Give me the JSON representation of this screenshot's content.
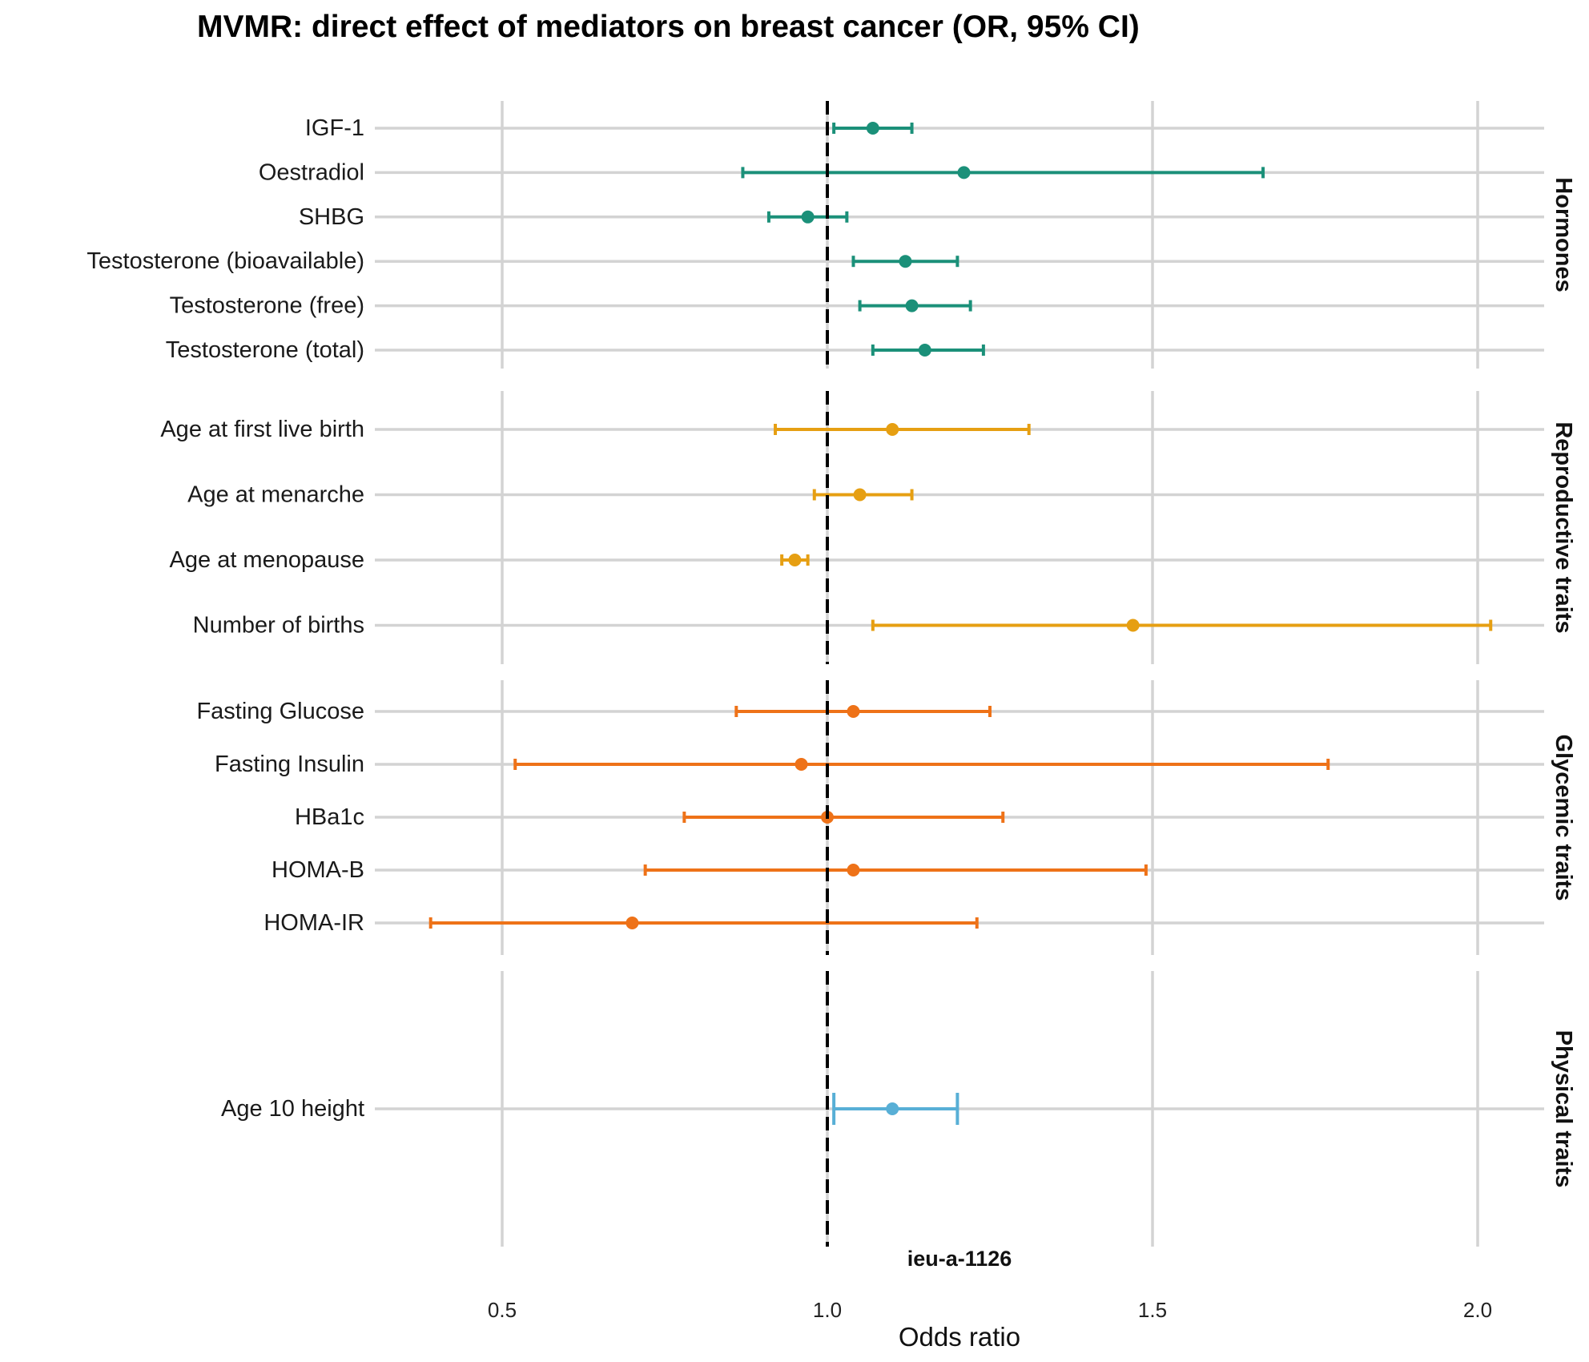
{
  "chart_data": {
    "type": "forest",
    "title": "MVMR: direct effect of mediators on breast cancer (OR, 95% CI)",
    "xlabel": "Odds ratio",
    "caption": "ieu-a-1126",
    "xlim": [
      0.3,
      2.1
    ],
    "xticks": [
      0.5,
      1.0,
      1.5,
      2.0
    ],
    "xtick_labels": [
      "0.5",
      "1.0",
      "1.5",
      "2.0"
    ],
    "reference_line": 1.0,
    "grid": true,
    "panels": [
      {
        "name": "Hormones",
        "color": "#1b9079",
        "rows": [
          {
            "label": "IGF-1",
            "or": 1.07,
            "lo": 1.01,
            "hi": 1.13
          },
          {
            "label": "Oestradiol",
            "or": 1.21,
            "lo": 0.87,
            "hi": 1.67
          },
          {
            "label": "SHBG",
            "or": 0.97,
            "lo": 0.91,
            "hi": 1.03
          },
          {
            "label": "Testosterone (bioavailable)",
            "or": 1.12,
            "lo": 1.04,
            "hi": 1.2
          },
          {
            "label": "Testosterone (free)",
            "or": 1.13,
            "lo": 1.05,
            "hi": 1.22
          },
          {
            "label": "Testosterone (total)",
            "or": 1.15,
            "lo": 1.07,
            "hi": 1.24
          }
        ]
      },
      {
        "name": "Reproductive traits",
        "color": "#e69f12",
        "rows": [
          {
            "label": "Age at first live birth",
            "or": 1.1,
            "lo": 0.92,
            "hi": 1.31
          },
          {
            "label": "Age at menarche",
            "or": 1.05,
            "lo": 0.98,
            "hi": 1.13
          },
          {
            "label": "Age at menopause",
            "or": 0.95,
            "lo": 0.93,
            "hi": 0.97
          },
          {
            "label": "Number of births",
            "or": 1.47,
            "lo": 1.07,
            "hi": 2.02
          }
        ]
      },
      {
        "name": "Glycemic traits",
        "color": "#ee7218",
        "rows": [
          {
            "label": "Fasting Glucose",
            "or": 1.04,
            "lo": 0.86,
            "hi": 1.25
          },
          {
            "label": "Fasting Insulin",
            "or": 0.96,
            "lo": 0.52,
            "hi": 1.77
          },
          {
            "label": "HBa1c",
            "or": 1.0,
            "lo": 0.78,
            "hi": 1.27
          },
          {
            "label": "HOMA-B",
            "or": 1.04,
            "lo": 0.72,
            "hi": 1.49
          },
          {
            "label": "HOMA-IR",
            "or": 0.7,
            "lo": 0.39,
            "hi": 1.23
          }
        ]
      },
      {
        "name": "Physical traits",
        "color": "#58afd6",
        "rows": [
          {
            "label": "Age 10 height",
            "or": 1.1,
            "lo": 1.01,
            "hi": 1.2
          }
        ]
      }
    ]
  }
}
